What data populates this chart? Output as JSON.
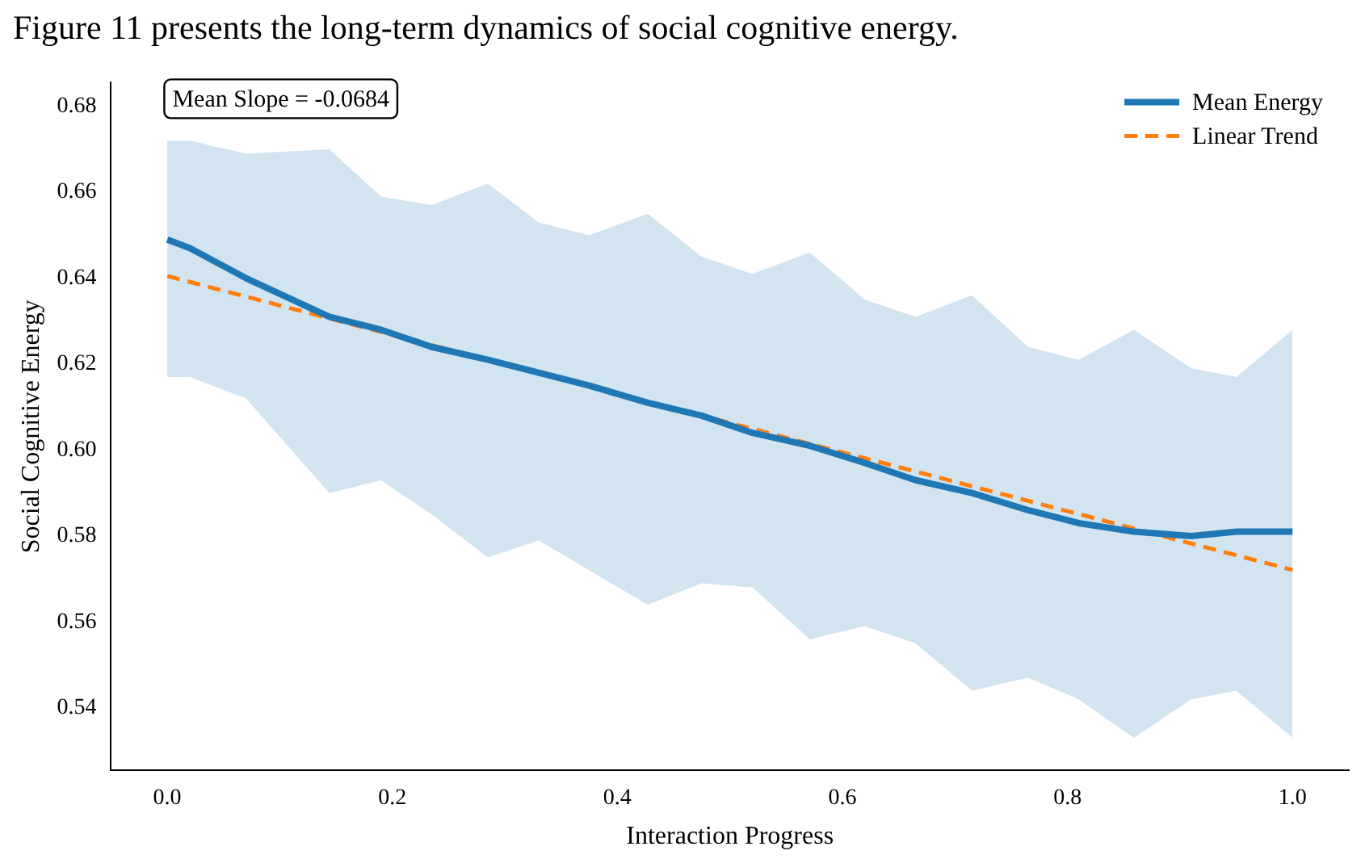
{
  "chart_data": {
    "type": "line",
    "title": "Figure 11 presents the long-term dynamics of social cognitive energy.",
    "xlabel": "Interaction Progress",
    "ylabel": "Social Cognitive Energy",
    "xlim": [
      -0.05,
      1.05
    ],
    "ylim": [
      0.5255,
      0.6855
    ],
    "xticks": [
      {
        "value": 0,
        "label": "0.0"
      },
      {
        "value": 0.2,
        "label": "0.2"
      },
      {
        "value": 0.4,
        "label": "0.4"
      },
      {
        "value": 0.6,
        "label": "0.6"
      },
      {
        "value": 0.8,
        "label": "0.8"
      },
      {
        "value": 1,
        "label": "1.0"
      }
    ],
    "yticks": [
      0.54,
      0.56,
      0.58,
      {
        "value": 0.6,
        "label": "0.60"
      },
      0.62,
      0.64,
      0.66,
      0.68
    ],
    "grid": false,
    "legend": "top right",
    "marker": "none",
    "annotations": [
      "Mean Slope = -0.0684"
    ],
    "series": [
      {
        "name": "Mean Energy",
        "color": "#1f77b4",
        "line_style": "solid",
        "x": [
          0,
          0.02,
          0.07,
          0.144,
          0.19,
          0.235,
          0.285,
          0.33,
          0.375,
          0.427,
          0.475,
          0.52,
          0.571,
          0.62,
          0.665,
          0.715,
          0.765,
          0.81,
          0.859,
          0.91,
          0.95,
          1.0
        ],
        "values": [
          0.649,
          0.647,
          0.64,
          0.631,
          0.628,
          0.624,
          0.621,
          0.618,
          0.615,
          0.611,
          0.608,
          0.604,
          0.601,
          0.597,
          0.593,
          0.59,
          0.586,
          0.583,
          0.581,
          0.58,
          0.581,
          0.581
        ],
        "upper": [
          0.672,
          0.672,
          0.669,
          0.67,
          0.659,
          0.657,
          0.662,
          0.653,
          0.65,
          0.655,
          0.645,
          0.641,
          0.646,
          0.635,
          0.631,
          0.636,
          0.624,
          0.621,
          0.628,
          0.619,
          0.617,
          0.628
        ],
        "lower": [
          0.617,
          0.617,
          0.612,
          0.59,
          0.593,
          0.585,
          0.575,
          0.579,
          0.572,
          0.564,
          0.569,
          0.568,
          0.556,
          0.559,
          0.555,
          0.544,
          0.547,
          0.542,
          0.533,
          0.542,
          0.544,
          0.533
        ]
      },
      {
        "name": "Linear Trend",
        "color": "#ff7f0e",
        "line_style": "dashed",
        "x": [
          0,
          1
        ],
        "values": [
          0.6405,
          0.5721
        ]
      }
    ]
  }
}
